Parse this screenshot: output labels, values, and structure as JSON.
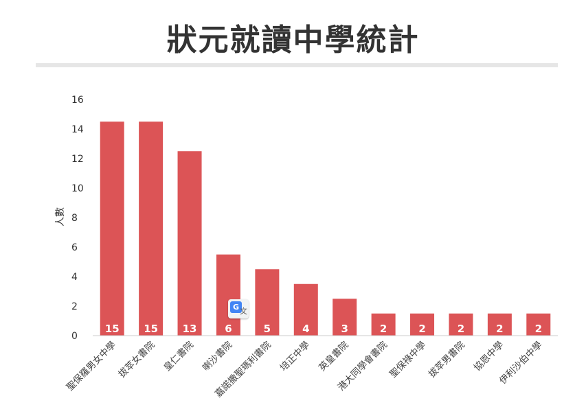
{
  "chart_data": {
    "type": "bar",
    "title": "狀元就讀中學統計",
    "ylabel": "人數",
    "ylim": [
      0,
      16
    ],
    "yticks": [
      0,
      2,
      4,
      6,
      8,
      10,
      12,
      14,
      16
    ],
    "categories": [
      "聖保羅男女中學",
      "拔萃女書院",
      "皇仁書院",
      "喇沙書院",
      "嘉諾撒聖瑪利書院",
      "培正中學",
      "英皇書院",
      "港大同學會書院",
      "聖保祿中學",
      "拔萃男書院",
      "協恩中學",
      "伊利沙伯中學"
    ],
    "values": [
      15,
      15,
      13,
      6,
      5,
      4,
      3,
      2,
      2,
      2,
      2,
      2
    ],
    "grid": false,
    "bar_color": "#dc5456"
  },
  "overlay": {
    "translate_badge": "translate-icon"
  }
}
